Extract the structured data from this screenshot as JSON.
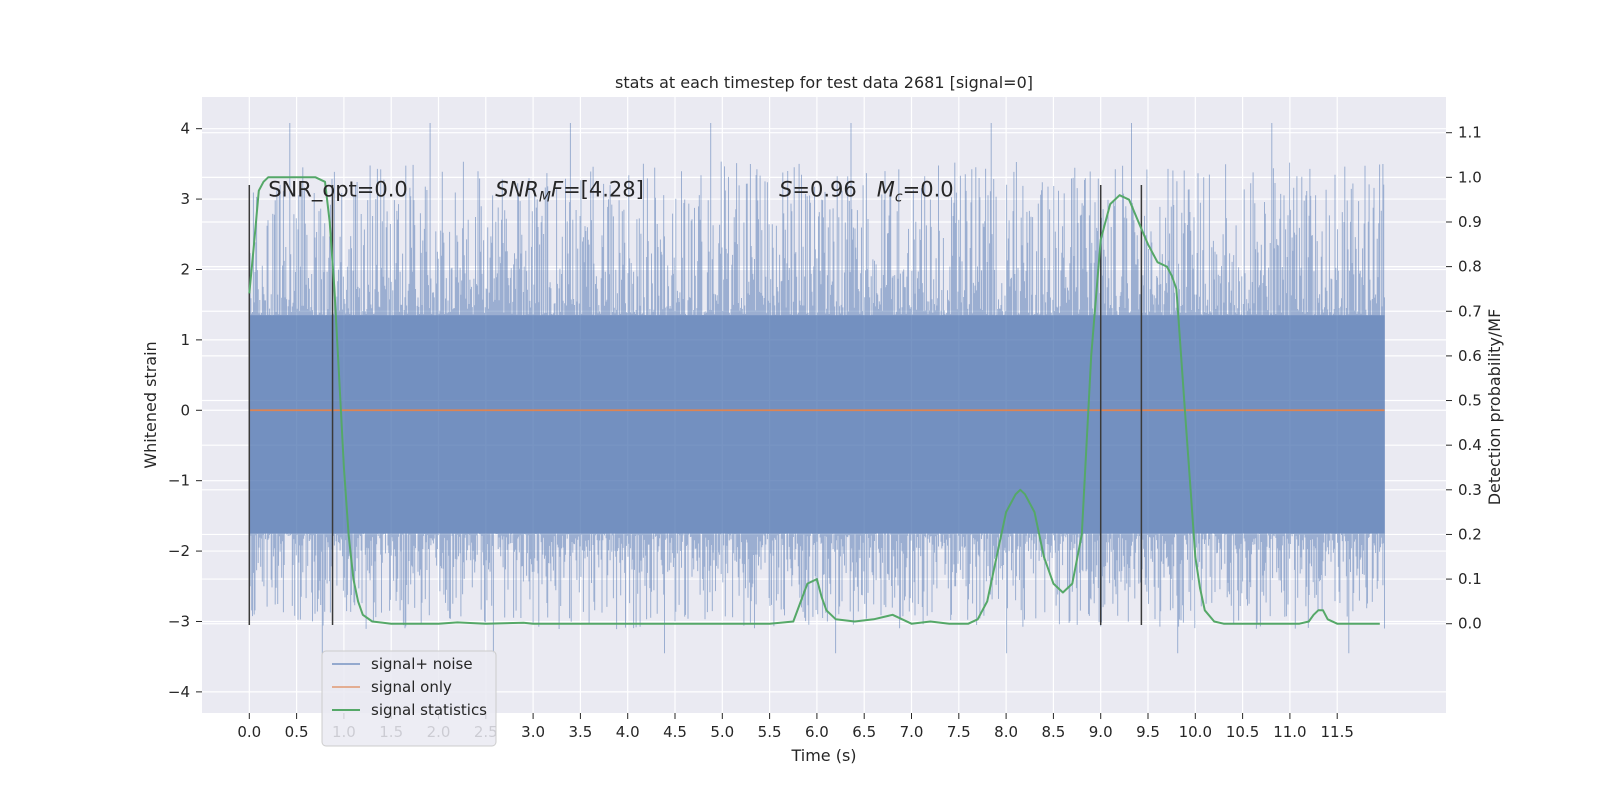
{
  "chart_data": {
    "type": "line",
    "title": "stats at each timestep for test data 2681 [signal=0]",
    "xlabel": "Time (s)",
    "ylabel": "Whitened strain",
    "y2label": "Detection probability/MF",
    "xlim": [
      -0.5,
      12.65
    ],
    "ylim": [
      -4.3,
      4.45
    ],
    "y2lim": [
      -0.2,
      1.18
    ],
    "x_ticks": [
      0.0,
      0.5,
      1.0,
      1.5,
      2.0,
      2.5,
      3.0,
      3.5,
      4.0,
      4.5,
      5.0,
      5.5,
      6.0,
      6.5,
      7.0,
      7.5,
      8.0,
      8.5,
      9.0,
      9.5,
      10.0,
      10.5,
      11.0,
      11.5
    ],
    "x_tick_labels": [
      "0.0",
      "0.5",
      "1.0",
      "1.5",
      "2.0",
      "2.5",
      "3.0",
      "3.5",
      "4.0",
      "4.5",
      "5.0",
      "5.5",
      "6.0",
      "6.5",
      "7.0",
      "7.5",
      "8.0",
      "8.5",
      "9.0",
      "9.5",
      "10.0",
      "10.5",
      "11.0",
      "11.5"
    ],
    "y_ticks": [
      -4,
      -3,
      -2,
      -1,
      0,
      1,
      2,
      3,
      4
    ],
    "y_tick_labels": [
      "−4",
      "−3",
      "−2",
      "−1",
      "0",
      "1",
      "2",
      "3",
      "4"
    ],
    "y2_ticks": [
      0.0,
      0.1,
      0.2,
      0.3,
      0.4,
      0.5,
      0.6,
      0.7,
      0.8,
      0.9,
      1.0,
      1.1
    ],
    "y2_tick_labels": [
      "0.0",
      "0.1",
      "0.2",
      "0.3",
      "0.4",
      "0.5",
      "0.6",
      "0.7",
      "0.8",
      "0.9",
      "1.0",
      "1.1"
    ],
    "grid": true,
    "legend_position": "lower-left",
    "noise": {
      "name": "signal+ noise",
      "color": "#4c72b0",
      "x_range": [
        0.0,
        12.0
      ],
      "band": [
        -1.75,
        1.35
      ],
      "max_value": 4.08,
      "min_value": -3.45
    },
    "signal_only": {
      "name": "signal only",
      "color": "#dd8452",
      "x_range": [
        0.0,
        12.0
      ],
      "value": 0.0
    },
    "statistics": {
      "name": "signal statistics",
      "color": "#55a868",
      "x": [
        0.0,
        0.05,
        0.1,
        0.15,
        0.2,
        0.3,
        0.5,
        0.7,
        0.8,
        0.85,
        0.9,
        0.95,
        1.0,
        1.05,
        1.1,
        1.15,
        1.2,
        1.3,
        1.5,
        2.0,
        2.2,
        2.5,
        2.9,
        3.0,
        3.5,
        4.0,
        4.5,
        5.0,
        5.5,
        5.75,
        5.9,
        6.0,
        6.05,
        6.1,
        6.2,
        6.4,
        6.6,
        6.8,
        7.0,
        7.2,
        7.4,
        7.6,
        7.7,
        7.8,
        7.9,
        8.0,
        8.1,
        8.15,
        8.2,
        8.3,
        8.4,
        8.5,
        8.6,
        8.7,
        8.8,
        8.9,
        9.0,
        9.1,
        9.2,
        9.3,
        9.4,
        9.5,
        9.6,
        9.7,
        9.75,
        9.8,
        9.85,
        9.9,
        9.95,
        10.0,
        10.05,
        10.1,
        10.2,
        10.3,
        10.5,
        11.0,
        11.1,
        11.2,
        11.25,
        11.3,
        11.35,
        11.4,
        11.5,
        11.95
      ],
      "values": [
        0.74,
        0.85,
        0.97,
        0.99,
        1.0,
        1.0,
        1.0,
        1.0,
        0.99,
        0.9,
        0.75,
        0.55,
        0.35,
        0.2,
        0.1,
        0.05,
        0.02,
        0.005,
        0.0,
        0.0,
        0.003,
        0.0,
        0.002,
        0.0,
        0.0,
        0.0,
        0.0,
        0.0,
        0.0,
        0.005,
        0.09,
        0.1,
        0.06,
        0.03,
        0.01,
        0.005,
        0.01,
        0.02,
        0.0,
        0.005,
        0.0,
        0.0,
        0.01,
        0.05,
        0.15,
        0.25,
        0.29,
        0.3,
        0.29,
        0.25,
        0.15,
        0.09,
        0.07,
        0.09,
        0.2,
        0.6,
        0.86,
        0.94,
        0.96,
        0.95,
        0.9,
        0.85,
        0.81,
        0.8,
        0.78,
        0.75,
        0.6,
        0.45,
        0.3,
        0.15,
        0.08,
        0.03,
        0.005,
        0.0,
        0.0,
        0.0,
        0.0,
        0.005,
        0.02,
        0.03,
        0.03,
        0.01,
        0.0,
        0.0
      ]
    },
    "vlines": [
      {
        "x": 0.0,
        "ymin": -3.05,
        "ymax": 3.2,
        "color": "#3a3a3a"
      },
      {
        "x": 0.88,
        "ymin": -3.05,
        "ymax": 3.2,
        "color": "#3a3a3a"
      },
      {
        "x": 9.0,
        "ymin": -3.05,
        "ymax": 3.2,
        "color": "#3a3a3a"
      },
      {
        "x": 9.43,
        "ymin": -3.05,
        "ymax": 3.2,
        "color": "#3a3a3a"
      }
    ],
    "annotations": {
      "snr_opt": {
        "text": "SNR_opt=0.0",
        "x": 0.2,
        "y": 3.15
      },
      "snr_mf": {
        "prefix": "SNR",
        "sub": "M",
        "suffix": "F=[4.28]",
        "x": 2.6,
        "y": 3.15
      },
      "stats": {
        "s_var": "S",
        "s_val": "=0.96   ",
        "m_var": "M",
        "m_sub": "c",
        "m_val": "=0.0",
        "x": 5.6,
        "y": 3.15
      }
    },
    "style": {
      "plot_background": "#eaeaf2",
      "grid_color": "#ffffff",
      "text_color": "#262626"
    }
  }
}
